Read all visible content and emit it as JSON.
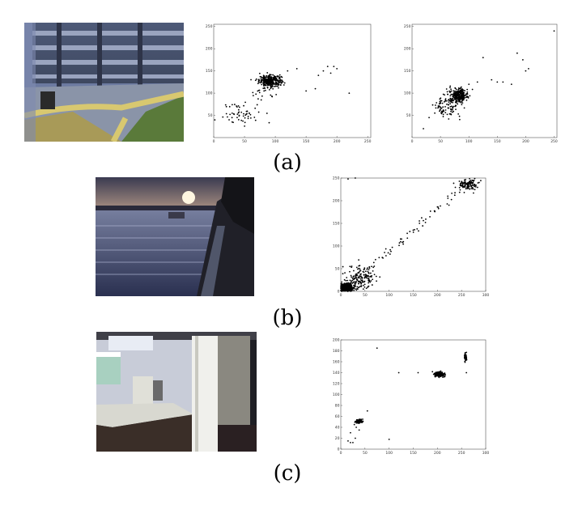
{
  "captions": {
    "a": "(a)",
    "b": "(b)",
    "c": "(c)"
  },
  "colors": {
    "points": "#000000",
    "axis": "#555555"
  },
  "chart_data": [
    {
      "id": "a-left",
      "type": "scatter",
      "title": "",
      "xlabel": "",
      "ylabel": "",
      "xlim": [
        0,
        255
      ],
      "ylim": [
        0,
        255
      ],
      "xticks": [
        0,
        50,
        100,
        150,
        200,
        250
      ],
      "yticks": [
        50,
        100,
        150,
        200,
        250
      ],
      "clusters": [
        {
          "cx": 92,
          "cy": 128,
          "sx": 9,
          "sy": 6,
          "n": 320
        },
        {
          "cx": 45,
          "cy": 55,
          "sx": 15,
          "sy": 12,
          "n": 55
        },
        {
          "cx": 80,
          "cy": 100,
          "sx": 10,
          "sy": 14,
          "n": 30
        }
      ],
      "points": [
        [
          120,
          150
        ],
        [
          135,
          155
        ],
        [
          150,
          105
        ],
        [
          165,
          110
        ],
        [
          170,
          140
        ],
        [
          178,
          150
        ],
        [
          185,
          160
        ],
        [
          190,
          145
        ],
        [
          195,
          160
        ],
        [
          200,
          155
        ],
        [
          220,
          100
        ],
        [
          25,
          40
        ],
        [
          30,
          35
        ]
      ]
    },
    {
      "id": "a-right",
      "type": "scatter",
      "title": "",
      "xlabel": "",
      "ylabel": "",
      "xlim": [
        0,
        255
      ],
      "ylim": [
        0,
        255
      ],
      "xticks": [
        0,
        50,
        100,
        150,
        200,
        250
      ],
      "yticks": [
        50,
        100,
        150,
        200,
        250
      ],
      "clusters": [
        {
          "cx": 82,
          "cy": 95,
          "sx": 8,
          "sy": 8,
          "n": 280
        },
        {
          "cx": 60,
          "cy": 70,
          "sx": 12,
          "sy": 14,
          "n": 90
        }
      ],
      "points": [
        [
          20,
          20
        ],
        [
          30,
          45
        ],
        [
          40,
          55
        ],
        [
          100,
          120
        ],
        [
          115,
          125
        ],
        [
          125,
          180
        ],
        [
          140,
          130
        ],
        [
          150,
          125
        ],
        [
          160,
          125
        ],
        [
          175,
          120
        ],
        [
          185,
          190
        ],
        [
          195,
          175
        ],
        [
          200,
          150
        ],
        [
          205,
          155
        ],
        [
          250,
          240
        ]
      ]
    },
    {
      "id": "b",
      "type": "scatter",
      "title": "",
      "xlabel": "",
      "ylabel": "",
      "xlim": [
        0,
        300
      ],
      "ylim": [
        0,
        250
      ],
      "xticks": [
        0,
        50,
        100,
        150,
        200,
        250,
        300
      ],
      "yticks": [
        0,
        50,
        100,
        150,
        200,
        250
      ],
      "clusters": [
        {
          "cx": 12,
          "cy": 8,
          "sx": 8,
          "sy": 5,
          "n": 420
        },
        {
          "cx": 40,
          "cy": 30,
          "sx": 14,
          "sy": 12,
          "n": 160
        },
        {
          "cx": 262,
          "cy": 235,
          "sx": 10,
          "sy": 6,
          "n": 120
        }
      ],
      "diagonal": {
        "from": [
          50,
          40
        ],
        "to": [
          240,
          220
        ],
        "n": 60
      },
      "points": [
        [
          15,
          248
        ],
        [
          30,
          250
        ]
      ]
    },
    {
      "id": "c",
      "type": "scatter",
      "title": "",
      "xlabel": "",
      "ylabel": "",
      "xlim": [
        0,
        300
      ],
      "ylim": [
        0,
        200
      ],
      "xticks": [
        0,
        50,
        100,
        150,
        200,
        250,
        300
      ],
      "yticks": [
        0,
        20,
        40,
        60,
        80,
        100,
        120,
        140,
        160,
        180,
        200
      ],
      "clusters": [
        {
          "cx": 204,
          "cy": 137,
          "sx": 5,
          "sy": 2.2,
          "n": 220
        },
        {
          "cx": 38,
          "cy": 51,
          "sx": 4,
          "sy": 1.8,
          "n": 110
        },
        {
          "cx": 258,
          "cy": 168,
          "sx": 1,
          "sy": 4,
          "n": 60
        }
      ],
      "points": [
        [
          75,
          185
        ],
        [
          120,
          140
        ],
        [
          160,
          140
        ],
        [
          260,
          140
        ],
        [
          55,
          70
        ],
        [
          28,
          45
        ],
        [
          32,
          40
        ],
        [
          38,
          35
        ],
        [
          20,
          30
        ],
        [
          30,
          20
        ],
        [
          15,
          15
        ],
        [
          20,
          12
        ],
        [
          25,
          12
        ],
        [
          100,
          18
        ]
      ]
    }
  ]
}
